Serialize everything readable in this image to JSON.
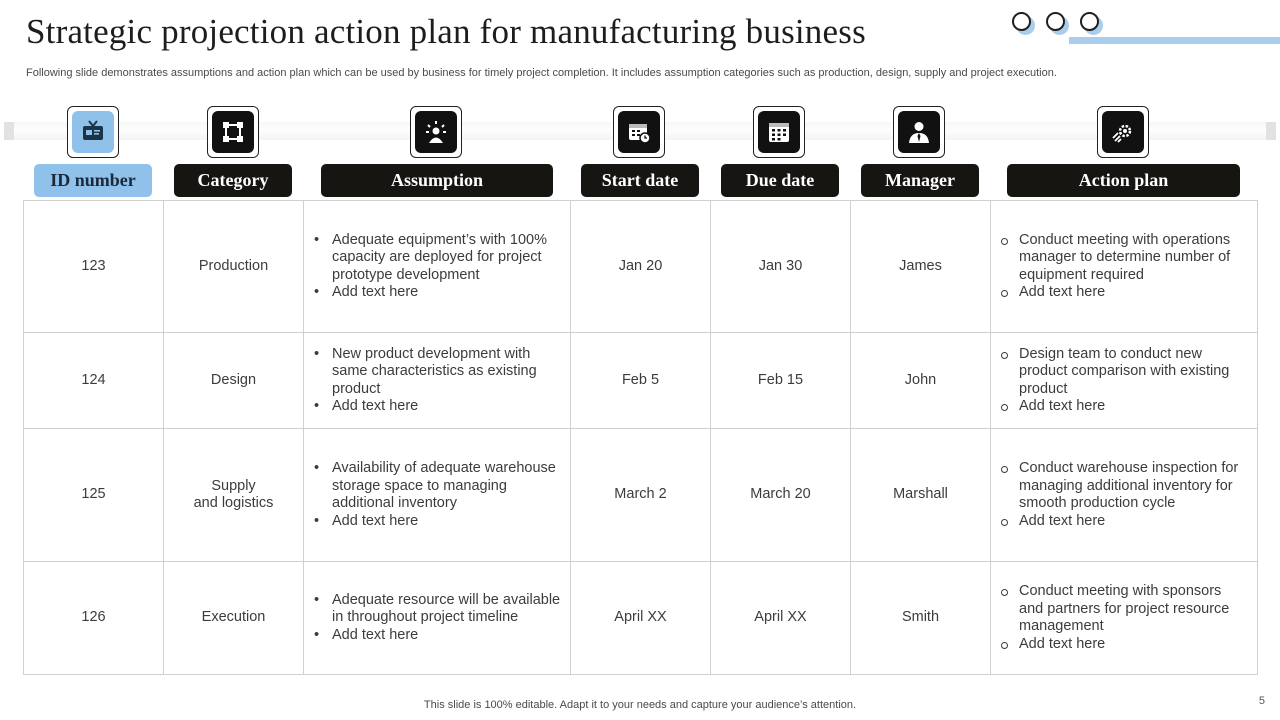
{
  "title": "Strategic projection action plan for manufacturing business",
  "subtitle": "Following slide demonstrates assumptions and action plan which can be used by business for timely project completion. It includes assumption categories such as production, design, supply and project execution.",
  "columns": [
    {
      "label": "ID number",
      "icon": "id-badge-icon"
    },
    {
      "label": "Category",
      "icon": "category-nodes-icon"
    },
    {
      "label": "Assumption",
      "icon": "idea-person-icon"
    },
    {
      "label": "Start date",
      "icon": "calendar-clock-icon"
    },
    {
      "label": "Due date",
      "icon": "calendar-grid-icon"
    },
    {
      "label": "Manager",
      "icon": "manager-person-icon"
    },
    {
      "label": "Action plan",
      "icon": "rocket-gear-icon"
    }
  ],
  "rows": [
    {
      "id": "123",
      "category": "Production",
      "assumption": [
        "Adequate equipment’s with 100% capacity are deployed for project prototype development",
        "Add text here"
      ],
      "start": "Jan 20",
      "due": "Jan 30",
      "manager": "James",
      "action": [
        "Conduct meeting with operations manager to determine number of equipment required",
        "Add text here"
      ]
    },
    {
      "id": "124",
      "category": "Design",
      "assumption": [
        "New product development with same characteristics as existing product",
        "Add text here"
      ],
      "start": "Feb 5",
      "due": "Feb 15",
      "manager": "John",
      "action": [
        "Design team to conduct new product comparison with existing product",
        "Add text here"
      ]
    },
    {
      "id": "125",
      "category_lines": [
        "Supply",
        "and logistics"
      ],
      "assumption": [
        "Availability  of adequate warehouse storage space to managing additional inventory",
        "Add text here"
      ],
      "start": "March 2",
      "due": "March 20",
      "manager": "Marshall",
      "action": [
        "Conduct warehouse inspection for managing additional inventory for smooth production cycle",
        "Add text here"
      ]
    },
    {
      "id": "126",
      "category": "Execution",
      "assumption": [
        "Adequate resource will be available in throughout project timeline",
        "Add text here"
      ],
      "start": "April XX",
      "due": "April XX",
      "manager": "Smith",
      "action": [
        "Conduct meeting with sponsors and partners for project resource management",
        "Add text here"
      ]
    }
  ],
  "footer": "This slide is 100% editable. Adapt it to your needs and capture your audience’s attention.",
  "page_number": "5",
  "colors": {
    "accent_blue": "#8fc1ea",
    "header_dark": "#171512"
  }
}
